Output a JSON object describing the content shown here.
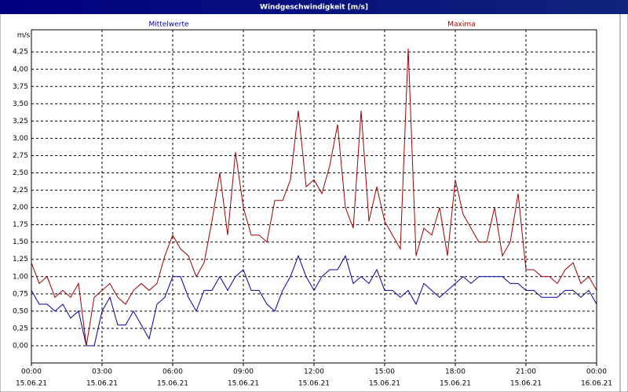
{
  "chart_data": {
    "type": "line",
    "title": "Windgeschwindigkeit [m/s]",
    "y_label": "m/s",
    "x": [
      0,
      20,
      40,
      60,
      80,
      100,
      120,
      140,
      160,
      180,
      200,
      220,
      240,
      260,
      280,
      300,
      320,
      340,
      360,
      380,
      400,
      420,
      440,
      460,
      480,
      500,
      520,
      540,
      560,
      580,
      600,
      620,
      640,
      660,
      680,
      700,
      720,
      740,
      760,
      780,
      800,
      820,
      840,
      860,
      880,
      900,
      920,
      940,
      960,
      980,
      1000,
      1020,
      1040,
      1060,
      1080,
      1100,
      1120,
      1140,
      1160,
      1180,
      1200,
      1220,
      1240,
      1260,
      1280,
      1300,
      1320,
      1340,
      1360,
      1380,
      1400,
      1420,
      1440
    ],
    "xlim": [
      0,
      1440
    ],
    "xticks": [
      {
        "value": 0,
        "label": "00:00",
        "date": "15.06.21"
      },
      {
        "value": 180,
        "label": "03:00",
        "date": "15.06.21"
      },
      {
        "value": 360,
        "label": "06:00",
        "date": "15.06.21"
      },
      {
        "value": 540,
        "label": "09:00",
        "date": "15.06.21"
      },
      {
        "value": 720,
        "label": "12:00",
        "date": "15.06.21"
      },
      {
        "value": 900,
        "label": "15:00",
        "date": "15.06.21"
      },
      {
        "value": 1080,
        "label": "18:00",
        "date": "15.06.21"
      },
      {
        "value": 1260,
        "label": "21:00",
        "date": "15.06.21"
      },
      {
        "value": 1440,
        "label": "00:00",
        "date": "16.06.21"
      }
    ],
    "ylim": [
      -0.25,
      4.57
    ],
    "yticks": [
      {
        "value": 0,
        "label": "0,00"
      },
      {
        "value": 0.25,
        "label": "0,25"
      },
      {
        "value": 0.5,
        "label": "0,50"
      },
      {
        "value": 0.75,
        "label": "0,75"
      },
      {
        "value": 1,
        "label": "1,00"
      },
      {
        "value": 1.25,
        "label": "1,25"
      },
      {
        "value": 1.5,
        "label": "1,50"
      },
      {
        "value": 1.75,
        "label": "1,75"
      },
      {
        "value": 2,
        "label": "2,00"
      },
      {
        "value": 2.25,
        "label": "2,25"
      },
      {
        "value": 2.5,
        "label": "2,50"
      },
      {
        "value": 2.75,
        "label": "2,75"
      },
      {
        "value": 3,
        "label": "3,00"
      },
      {
        "value": 3.25,
        "label": "3,25"
      },
      {
        "value": 3.5,
        "label": "3,50"
      },
      {
        "value": 3.75,
        "label": "3,75"
      },
      {
        "value": 4,
        "label": "4,00"
      },
      {
        "value": 4.25,
        "label": "4,25"
      }
    ],
    "grid": true,
    "series": [
      {
        "name": "Mittelwerte",
        "color": "#0000a0",
        "values": [
          0.8,
          0.6,
          0.6,
          0.5,
          0.6,
          0.4,
          0.5,
          0.0,
          0.0,
          0.5,
          0.7,
          0.3,
          0.3,
          0.5,
          0.3,
          0.1,
          0.6,
          0.7,
          1.0,
          1.0,
          0.7,
          0.5,
          0.8,
          0.8,
          1.0,
          0.8,
          1.0,
          1.1,
          0.8,
          0.8,
          0.6,
          0.5,
          0.8,
          1.0,
          1.3,
          1.0,
          0.8,
          1.0,
          1.1,
          1.1,
          1.3,
          0.9,
          1.0,
          0.9,
          1.1,
          0.8,
          0.8,
          0.7,
          0.8,
          0.6,
          0.9,
          0.8,
          0.7,
          0.8,
          0.9,
          1.0,
          0.9,
          1.0,
          1.0,
          1.0,
          1.0,
          0.9,
          0.9,
          0.8,
          0.8,
          0.7,
          0.7,
          0.7,
          0.8,
          0.8,
          0.7,
          0.8,
          0.6
        ]
      },
      {
        "name": "Maxima",
        "color": "#a00000",
        "values": [
          1.2,
          0.9,
          1.0,
          0.7,
          0.8,
          0.7,
          0.9,
          0.0,
          0.7,
          0.8,
          0.9,
          0.7,
          0.6,
          0.8,
          0.9,
          0.8,
          0.9,
          1.3,
          1.6,
          1.4,
          1.3,
          1.0,
          1.2,
          1.8,
          2.5,
          1.6,
          2.8,
          2.0,
          1.6,
          1.6,
          1.5,
          2.1,
          2.1,
          2.4,
          3.4,
          2.3,
          2.4,
          2.2,
          2.6,
          3.2,
          2.0,
          1.7,
          3.4,
          1.8,
          2.3,
          1.8,
          1.6,
          1.4,
          4.3,
          1.3,
          1.7,
          1.6,
          2.0,
          1.3,
          2.4,
          1.9,
          1.7,
          1.5,
          1.5,
          2.0,
          1.3,
          1.5,
          2.2,
          1.1,
          1.1,
          1.0,
          1.0,
          0.9,
          1.1,
          1.2,
          0.9,
          1.0,
          0.8
        ]
      }
    ]
  }
}
